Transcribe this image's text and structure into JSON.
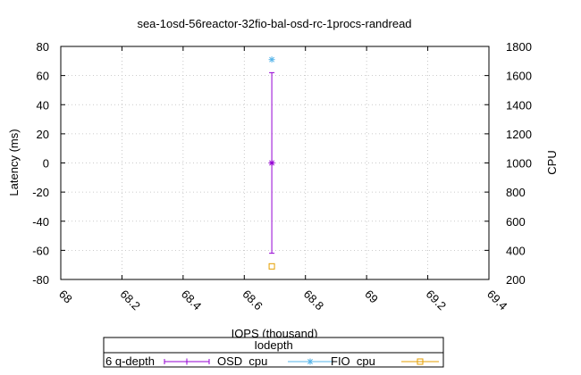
{
  "chart_data": {
    "type": "scatter",
    "title": "sea-1osd-56reactor-32fio-bal-osd-rc-1procs-randread",
    "xlabel": "IOPS (thousand)",
    "ylabel": "Latency (ms)",
    "y2label": "CPU",
    "xlim": [
      68,
      69.4
    ],
    "ylim": [
      -80,
      80
    ],
    "y2lim": [
      200,
      1800
    ],
    "x_ticks": [
      "68",
      "68.2",
      "68.4",
      "68.6",
      "68.8",
      "69",
      "69.2",
      "69.4"
    ],
    "y_ticks": [
      "-80",
      "-60",
      "-40",
      "-20",
      "0",
      "20",
      "40",
      "60",
      "80"
    ],
    "y2_ticks": [
      "200",
      "400",
      "600",
      "800",
      "1000",
      "1200",
      "1400",
      "1600",
      "1800"
    ],
    "grid": true,
    "legend": {
      "title": "Iodepth",
      "placement": "bottom"
    },
    "series": [
      {
        "name": "6 q-depth",
        "axis": "y",
        "color": "#9400d3",
        "marker": "plus",
        "points": [
          {
            "x": 68.69,
            "y": 0,
            "yerr_low": -62,
            "yerr_high": 62
          }
        ]
      },
      {
        "name": "OSD_cpu",
        "axis": "y2",
        "color": "#56b4e9",
        "marker": "star",
        "points": [
          {
            "x": 68.69,
            "y": 1710
          }
        ]
      },
      {
        "name": "FIO_cpu",
        "axis": "y2",
        "color": "#e69f00",
        "marker": "square",
        "points": [
          {
            "x": 68.69,
            "y": 290
          }
        ]
      }
    ]
  }
}
